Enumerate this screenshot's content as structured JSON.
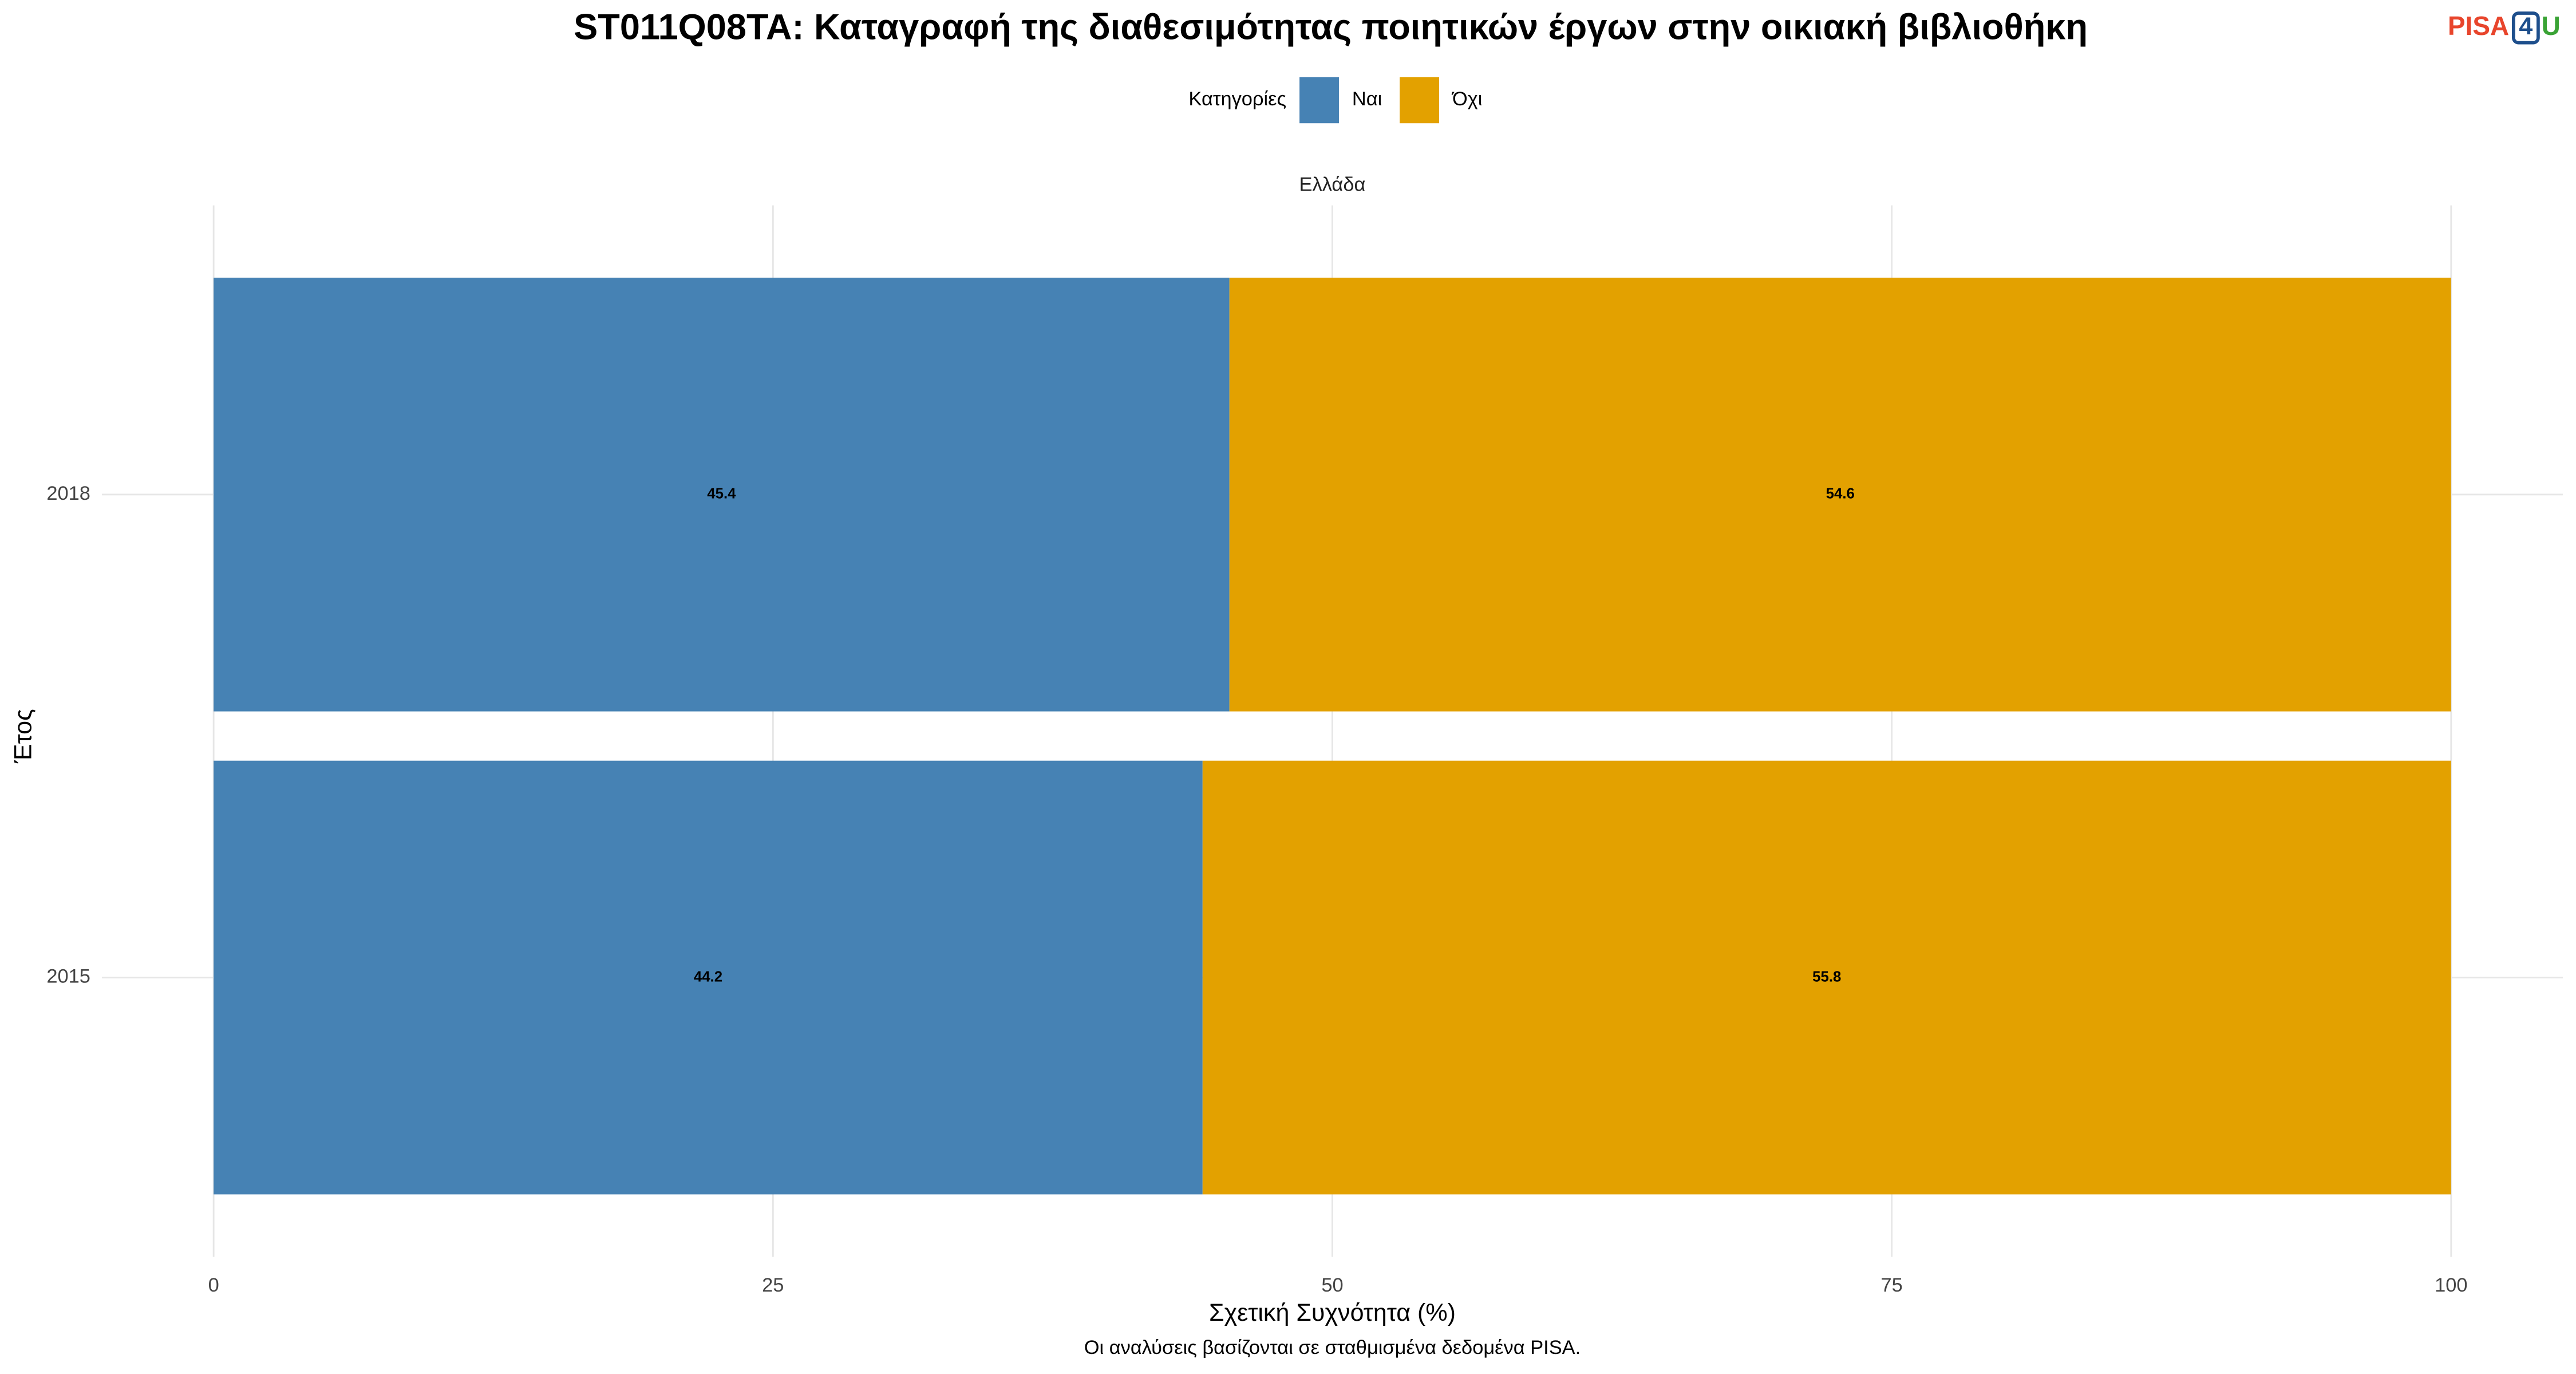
{
  "chart_data": {
    "type": "stacked-barh",
    "title": "ST011Q08TA: Καταγραφή της διαθεσιμότητας ποιητικών έργων στην οικιακή βιβλιοθήκη",
    "logo": [
      "PISA",
      "4",
      "U"
    ],
    "legend_title": "Κατηγορίες",
    "facet": "Ελλάδα",
    "categories": [
      "2018",
      "2015"
    ],
    "series": [
      {
        "name": "Ναι",
        "color": "#4682b4",
        "values": [
          45.4,
          44.2
        ]
      },
      {
        "name": "Όχι",
        "color": "#e3a100",
        "values": [
          54.6,
          55.8
        ]
      }
    ],
    "xlim": [
      0,
      100
    ],
    "xticks": [
      0,
      25,
      50,
      75,
      100
    ],
    "xlabel": "Σχετική Συχνότητα (%)",
    "ylabel": "Έτος",
    "caption": "Οι αναλύσεις βασίζονται σε σταθμισμένα δεδομένα PISA.",
    "grid": true,
    "legend_position": "top"
  }
}
